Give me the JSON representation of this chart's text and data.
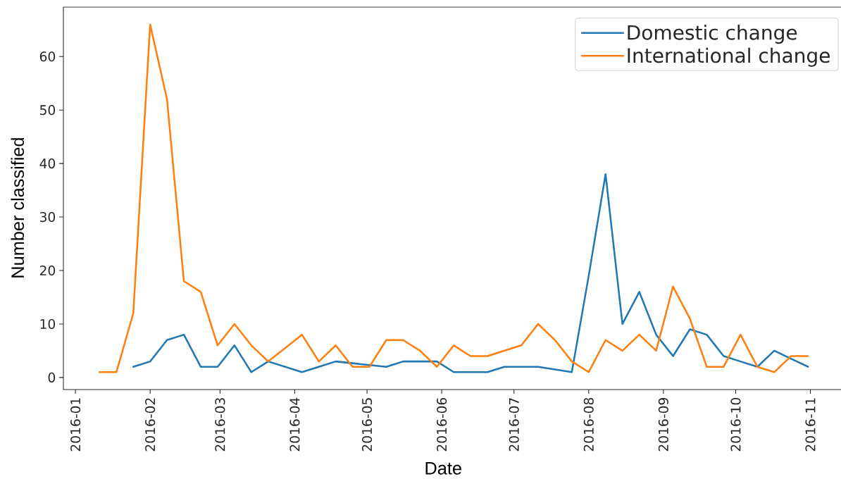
{
  "chart_data": {
    "type": "line",
    "xlabel": "Date",
    "ylabel": "Number classified",
    "xlim": [
      "2015-12-27",
      "2016-11-14"
    ],
    "ylim": [
      -2.25,
      69.25
    ],
    "xticks": [
      "2016-01",
      "2016-02",
      "2016-03",
      "2016-04",
      "2016-05",
      "2016-06",
      "2016-07",
      "2016-08",
      "2016-09",
      "2016-10",
      "2016-11"
    ],
    "yticks": [
      0,
      10,
      20,
      30,
      40,
      50,
      60
    ],
    "legend": "top right",
    "series": [
      {
        "name": "Domestic change",
        "color": "#1f77b4",
        "x": [
          "2016-01-25",
          "2016-02-01",
          "2016-02-08",
          "2016-02-15",
          "2016-02-22",
          "2016-02-29",
          "2016-03-07",
          "2016-03-14",
          "2016-03-21",
          "2016-04-04",
          "2016-04-11",
          "2016-04-18",
          "2016-05-09",
          "2016-05-16",
          "2016-05-23",
          "2016-05-30",
          "2016-06-06",
          "2016-06-13",
          "2016-06-20",
          "2016-06-27",
          "2016-07-04",
          "2016-07-11",
          "2016-07-25",
          "2016-08-01",
          "2016-08-08",
          "2016-08-15",
          "2016-08-22",
          "2016-08-29",
          "2016-09-05",
          "2016-09-12",
          "2016-09-19",
          "2016-09-26",
          "2016-10-03",
          "2016-10-10",
          "2016-10-17",
          "2016-10-31"
        ],
        "values": [
          2,
          3,
          7,
          8,
          2,
          2,
          6,
          1,
          3,
          1,
          2,
          3,
          2,
          3,
          3,
          3,
          1,
          1,
          1,
          2,
          2,
          2,
          1,
          19,
          38,
          10,
          16,
          8,
          4,
          9,
          8,
          4,
          3,
          2,
          5,
          2
        ]
      },
      {
        "name": "International change",
        "color": "#ff7f0e",
        "x": [
          "2016-01-11",
          "2016-01-18",
          "2016-01-25",
          "2016-02-01",
          "2016-02-08",
          "2016-02-15",
          "2016-02-22",
          "2016-02-29",
          "2016-03-07",
          "2016-03-14",
          "2016-03-21",
          "2016-04-04",
          "2016-04-11",
          "2016-04-18",
          "2016-04-25",
          "2016-05-02",
          "2016-05-09",
          "2016-05-16",
          "2016-05-23",
          "2016-05-30",
          "2016-06-06",
          "2016-06-13",
          "2016-06-20",
          "2016-06-27",
          "2016-07-04",
          "2016-07-11",
          "2016-07-18",
          "2016-07-25",
          "2016-08-01",
          "2016-08-08",
          "2016-08-15",
          "2016-08-22",
          "2016-08-29",
          "2016-09-05",
          "2016-09-12",
          "2016-09-19",
          "2016-09-26",
          "2016-10-03",
          "2016-10-10",
          "2016-10-17",
          "2016-10-24",
          "2016-10-31"
        ],
        "values": [
          1,
          1,
          12,
          66,
          52,
          18,
          16,
          6,
          10,
          6,
          3,
          8,
          3,
          6,
          2,
          2,
          7,
          7,
          5,
          2,
          6,
          4,
          4,
          5,
          6,
          10,
          7,
          3,
          1,
          7,
          5,
          8,
          5,
          17,
          11,
          2,
          2,
          8,
          2,
          1,
          4,
          4
        ]
      }
    ]
  }
}
